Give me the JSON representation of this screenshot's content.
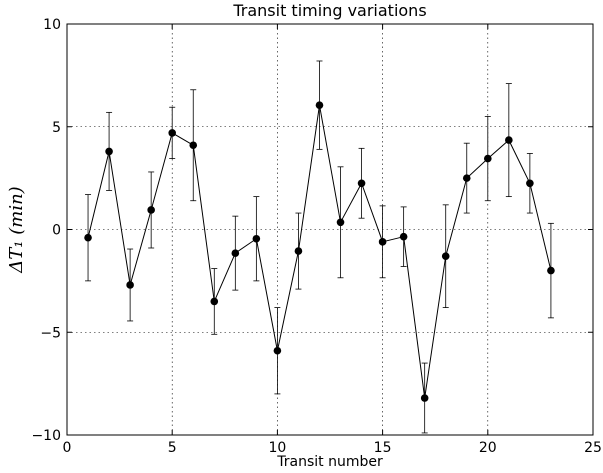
{
  "chart_data": {
    "type": "line",
    "title": "Transit timing variations",
    "xlabel": "Transit number",
    "ylabel": "ΔT₁ (min)",
    "xlim": [
      0,
      25
    ],
    "ylim": [
      -10,
      10
    ],
    "x_ticks": [
      0,
      5,
      10,
      15,
      20,
      25
    ],
    "y_ticks": [
      -10,
      -5,
      0,
      5,
      10
    ],
    "x_tick_labels": [
      "0",
      "5",
      "10",
      "15",
      "20",
      "25"
    ],
    "y_tick_labels": [
      "−10",
      "−5",
      "0",
      "5",
      "10"
    ],
    "grid": true,
    "series": [
      {
        "x": [
          1,
          2,
          3,
          4,
          5,
          6,
          7,
          8,
          9,
          10,
          11,
          12,
          13,
          14,
          15,
          16,
          17,
          18,
          19,
          20,
          21,
          22,
          23
        ],
        "y": [
          -0.4,
          3.8,
          -2.7,
          0.95,
          4.7,
          4.1,
          -3.5,
          -1.15,
          -0.45,
          -5.9,
          -1.05,
          6.05,
          0.35,
          2.25,
          -0.6,
          -0.35,
          -8.2,
          -1.3,
          2.5,
          3.45,
          4.35,
          2.25,
          -2.0
        ],
        "yerr": [
          2.1,
          1.9,
          1.75,
          1.85,
          1.25,
          2.7,
          1.6,
          1.8,
          2.05,
          2.1,
          1.85,
          2.15,
          2.7,
          1.7,
          1.75,
          1.45,
          1.7,
          2.5,
          1.7,
          2.05,
          2.75,
          1.45,
          2.3
        ],
        "color": "#000000"
      }
    ]
  }
}
